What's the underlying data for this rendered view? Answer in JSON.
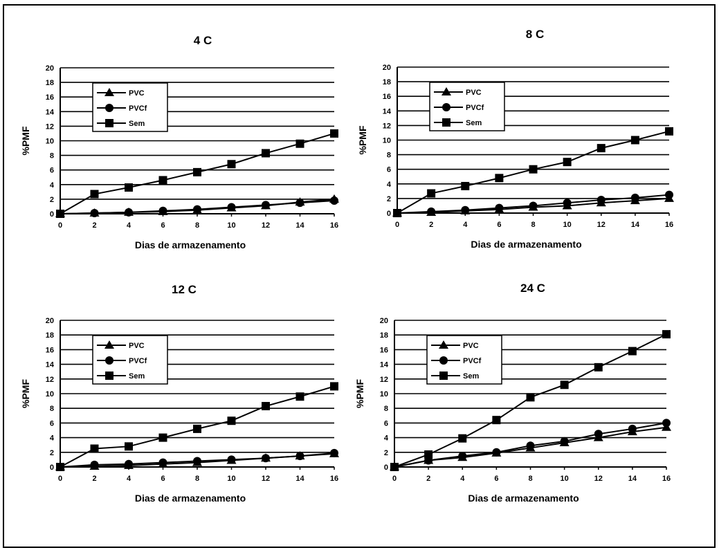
{
  "chart_data": [
    {
      "type": "line",
      "title": "4 C",
      "xlabel": "Dias de armazenamento",
      "ylabel": "%PMF",
      "x": [
        0,
        2,
        4,
        6,
        8,
        10,
        12,
        14,
        16
      ],
      "xlim": [
        0,
        16
      ],
      "ylim": [
        0,
        20
      ],
      "xticks": [
        "0",
        "2",
        "4",
        "6",
        "8",
        "10",
        "12",
        "14",
        "16"
      ],
      "yticks": [
        "0",
        "2",
        "4",
        "6",
        "8",
        "10",
        "12",
        "14",
        "16",
        "18",
        "20"
      ],
      "grid": "horizontal",
      "legend_position": "top-left",
      "series": [
        {
          "name": "PVC",
          "marker": "triangle",
          "values": [
            0,
            0.1,
            0.2,
            0.3,
            0.5,
            0.8,
            1.1,
            1.6,
            2.0
          ]
        },
        {
          "name": "PVCf",
          "marker": "circle",
          "values": [
            0,
            0.1,
            0.2,
            0.4,
            0.6,
            0.9,
            1.2,
            1.5,
            1.8
          ]
        },
        {
          "name": "Sem",
          "marker": "square",
          "values": [
            0,
            2.7,
            3.6,
            4.6,
            5.7,
            6.8,
            8.3,
            9.6,
            11.0
          ]
        }
      ]
    },
    {
      "type": "line",
      "title": "8 C",
      "xlabel": "Dias de armazenamento",
      "ylabel": "%PMF",
      "x": [
        0,
        2,
        4,
        6,
        8,
        10,
        12,
        14,
        16
      ],
      "xlim": [
        0,
        16
      ],
      "ylim": [
        0,
        20
      ],
      "xticks": [
        "0",
        "2",
        "4",
        "6",
        "8",
        "10",
        "12",
        "14",
        "16"
      ],
      "yticks": [
        "0",
        "2",
        "4",
        "6",
        "8",
        "10",
        "12",
        "14",
        "16",
        "18",
        "20"
      ],
      "grid": "horizontal",
      "legend_position": "top-left",
      "series": [
        {
          "name": "PVC",
          "marker": "triangle",
          "values": [
            0,
            0.1,
            0.3,
            0.5,
            0.8,
            1.0,
            1.4,
            1.7,
            2.0
          ]
        },
        {
          "name": "PVCf",
          "marker": "circle",
          "values": [
            0,
            0.2,
            0.4,
            0.7,
            1.0,
            1.4,
            1.8,
            2.1,
            2.5
          ]
        },
        {
          "name": "Sem",
          "marker": "square",
          "values": [
            0,
            2.7,
            3.7,
            4.8,
            6.0,
            7.0,
            8.9,
            10.0,
            11.2
          ]
        }
      ]
    },
    {
      "type": "line",
      "title": "12 C",
      "xlabel": "Dias de armazenamento",
      "ylabel": "%PMF",
      "x": [
        0,
        2,
        4,
        6,
        8,
        10,
        12,
        14,
        16
      ],
      "xlim": [
        0,
        16
      ],
      "ylim": [
        0,
        20
      ],
      "xticks": [
        "0",
        "2",
        "4",
        "6",
        "8",
        "10",
        "12",
        "14",
        "16"
      ],
      "yticks": [
        "0",
        "2",
        "4",
        "6",
        "8",
        "10",
        "12",
        "14",
        "16",
        "18",
        "20"
      ],
      "grid": "horizontal",
      "legend_position": "top-left",
      "series": [
        {
          "name": "PVC",
          "marker": "triangle",
          "values": [
            0,
            0.1,
            0.2,
            0.4,
            0.6,
            0.9,
            1.2,
            1.5,
            1.8
          ]
        },
        {
          "name": "PVCf",
          "marker": "circle",
          "values": [
            0,
            0.3,
            0.4,
            0.6,
            0.8,
            1.0,
            1.2,
            1.5,
            1.9
          ]
        },
        {
          "name": "Sem",
          "marker": "square",
          "values": [
            0,
            2.5,
            2.8,
            4.0,
            5.2,
            6.3,
            8.3,
            9.6,
            11.0
          ]
        }
      ]
    },
    {
      "type": "line",
      "title": "24 C",
      "xlabel": "Dias de armazenamento",
      "ylabel": "%PMF",
      "x": [
        0,
        2,
        4,
        6,
        8,
        10,
        12,
        14,
        16
      ],
      "xlim": [
        0,
        16
      ],
      "ylim": [
        0,
        20
      ],
      "xticks": [
        "0",
        "2",
        "4",
        "6",
        "8",
        "10",
        "12",
        "14",
        "16"
      ],
      "yticks": [
        "0",
        "2",
        "4",
        "6",
        "8",
        "10",
        "12",
        "14",
        "16",
        "18",
        "20"
      ],
      "grid": "horizontal",
      "legend_position": "top-left",
      "series": [
        {
          "name": "PVC",
          "marker": "triangle",
          "values": [
            0,
            0.9,
            1.3,
            1.9,
            2.6,
            3.3,
            4.0,
            4.8,
            5.4
          ]
        },
        {
          "name": "PVCf",
          "marker": "circle",
          "values": [
            0,
            0.9,
            1.5,
            2.0,
            2.9,
            3.5,
            4.5,
            5.2,
            6.0
          ]
        },
        {
          "name": "Sem",
          "marker": "square",
          "values": [
            0,
            1.7,
            3.9,
            6.4,
            9.5,
            11.2,
            13.6,
            15.8,
            18.1
          ]
        }
      ]
    }
  ]
}
